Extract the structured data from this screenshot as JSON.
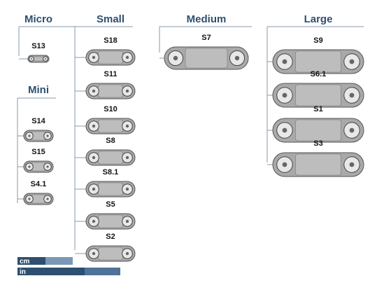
{
  "groups": [
    {
      "title": "Micro",
      "links": [
        "S13"
      ]
    },
    {
      "title": "Mini",
      "links": [
        "S14",
        "S15",
        "S4.1"
      ]
    },
    {
      "title": "Small",
      "links": [
        "S18",
        "S11",
        "S10",
        "S8",
        "S8.1",
        "S5",
        "S2"
      ]
    },
    {
      "title": "Medium",
      "links": [
        "S7"
      ]
    },
    {
      "title": "Large",
      "links": [
        "S9",
        "S6.1",
        "S1",
        "S3"
      ]
    }
  ],
  "scale": {
    "units": [
      "cm",
      "in"
    ]
  }
}
